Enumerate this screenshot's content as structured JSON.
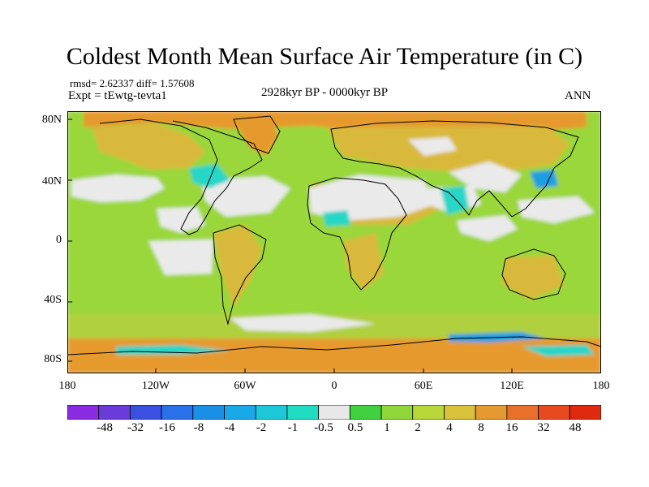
{
  "title": "Coldest Month Mean Surface Air Temperature (in C)",
  "stats": "rmsd= 2.62337 diff= 1.57608",
  "experiment": "Expt = tEwtg-tevta1",
  "period": "2928kyr BP - 0000kyr BP",
  "season": "ANN",
  "lat_labels": [
    "80N",
    "40N",
    "0",
    "40S",
    "80S"
  ],
  "lon_labels": [
    "180",
    "120W",
    "60W",
    "0",
    "60E",
    "120E",
    "180"
  ],
  "colorbar": {
    "labels": [
      "-48",
      "-32",
      "-16",
      "-8",
      "-4",
      "-2",
      "-1",
      "-0.5",
      "0.5",
      "1",
      "2",
      "4",
      "8",
      "16",
      "32",
      "48"
    ],
    "colors": [
      "#8a2be2",
      "#6a3bd9",
      "#3a50e0",
      "#2a70e8",
      "#1a8fe6",
      "#19a8e8",
      "#1cc8d8",
      "#20dcc0",
      "#e8e8e8",
      "#40d040",
      "#8fd63a",
      "#b8d83a",
      "#d8c23a",
      "#e49a30",
      "#e8702a",
      "#e84a20",
      "#e02a10"
    ]
  },
  "map_colors": {
    "background": "#9ad73a",
    "ocean_band": "#b0d03c",
    "warm": "#d9b93a",
    "hot": "#e69a2e",
    "neutral": "#eaeaea",
    "cool": "#26d6c6",
    "cold": "#1a9fe2",
    "coast": "#000000"
  }
}
